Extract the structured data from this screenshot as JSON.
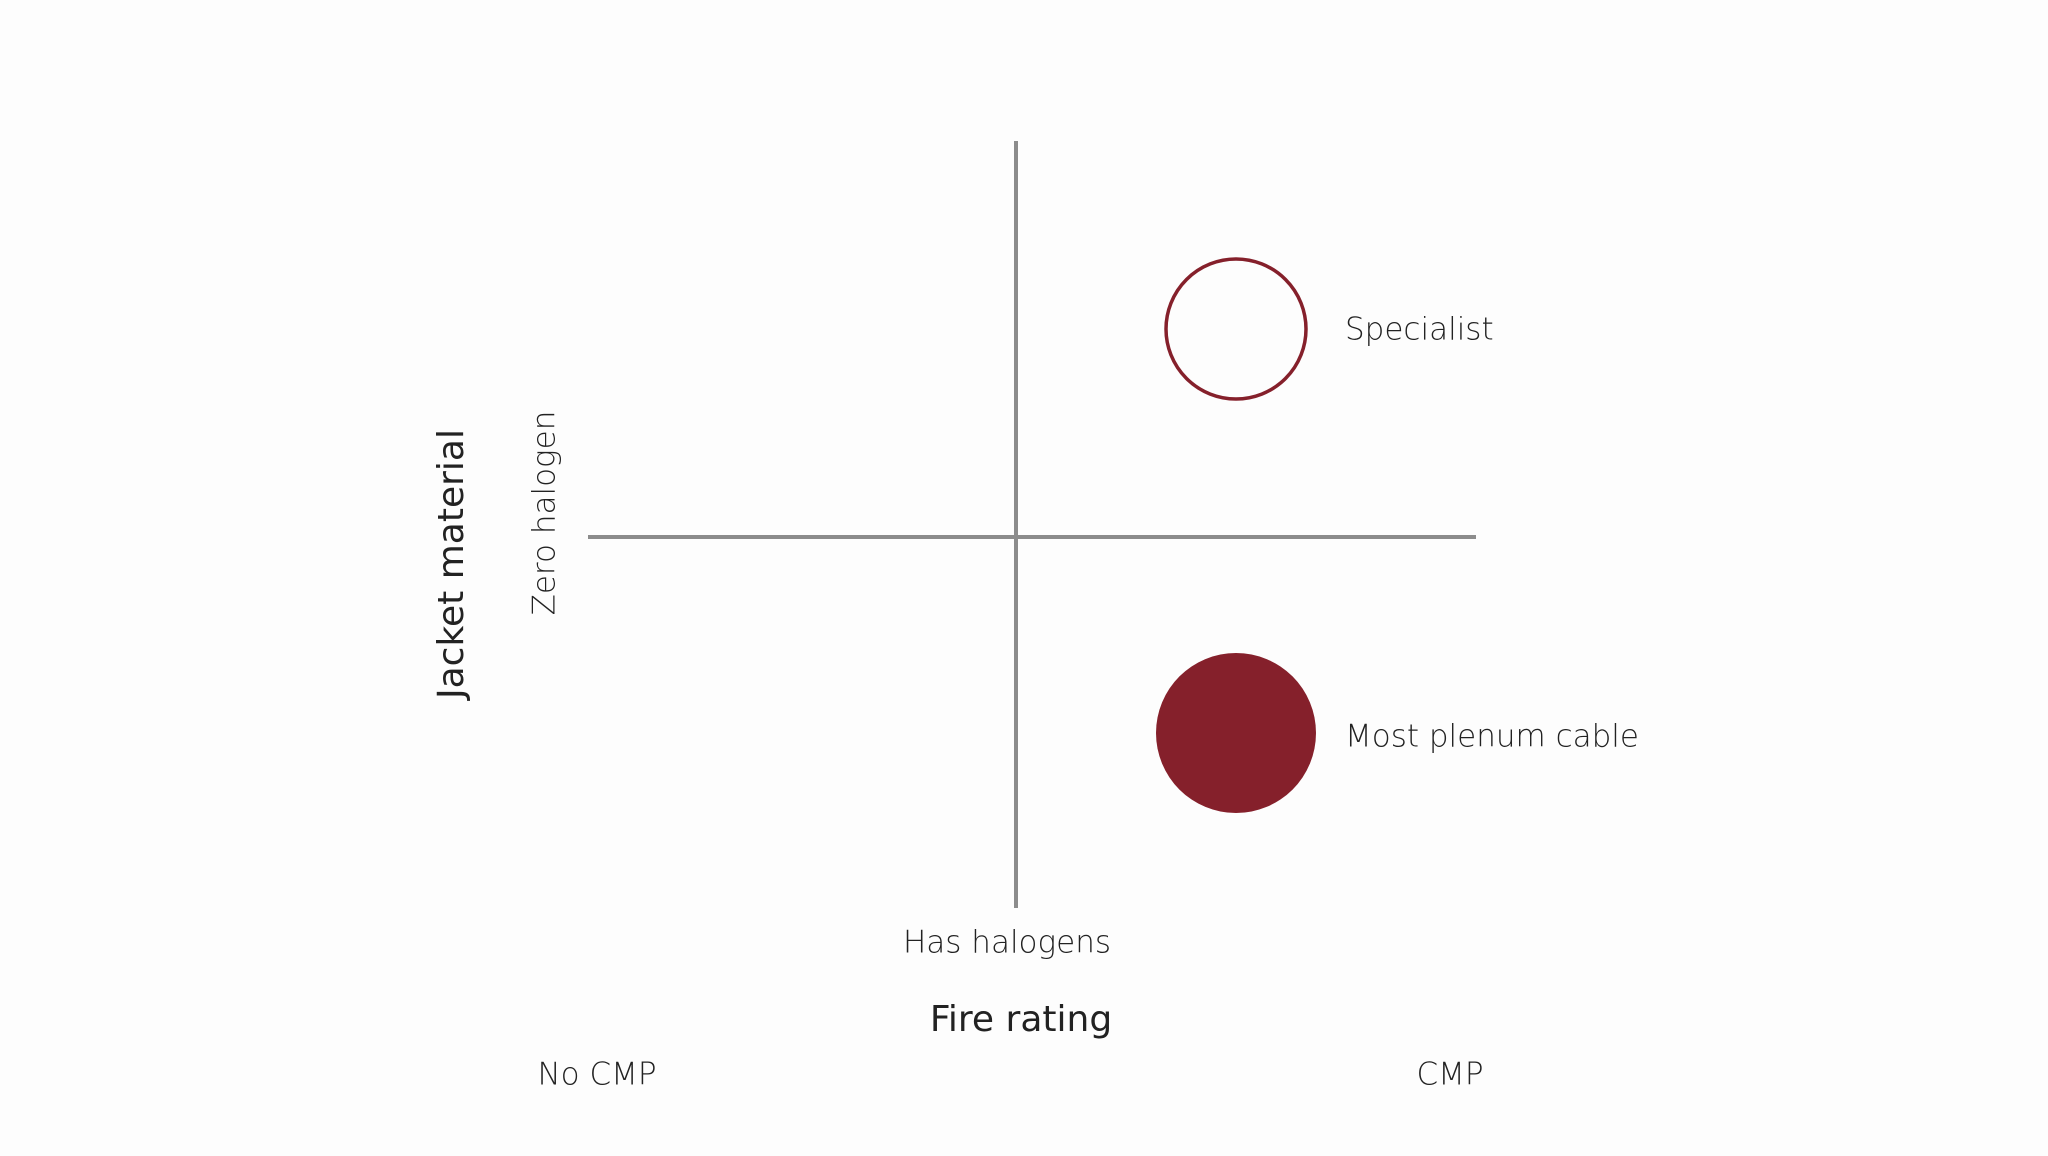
{
  "axes": {
    "x": {
      "title": "Fire rating",
      "low": "No CMP",
      "high": "CMP"
    },
    "y": {
      "title": "Jacket material",
      "high": "Zero halogen",
      "low": "Has halogens"
    }
  },
  "items": [
    {
      "label": "Specialist"
    },
    {
      "label": "Most plenum cable"
    }
  ]
}
